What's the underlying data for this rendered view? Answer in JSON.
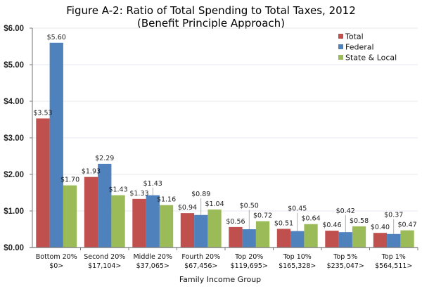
{
  "chart_data": {
    "type": "bar",
    "title": "Figure A-2: Ratio of Total Spending to Total Taxes, 2012",
    "subtitle": "(Benefit Principle Approach)",
    "xlabel": "Family Income Group",
    "ylabel": "",
    "ylim": [
      0,
      6
    ],
    "yticks": [
      0,
      1,
      2,
      3,
      4,
      5,
      6
    ],
    "ytick_labels": [
      "$0.00",
      "$1.00",
      "$2.00",
      "$3.00",
      "$4.00",
      "$5.00",
      "$6.00"
    ],
    "grid": true,
    "legend_position": "top-right",
    "categories": [
      {
        "line1": "Bottom 20%",
        "line2": "$0>"
      },
      {
        "line1": "Second 20%",
        "line2": "$17,104>"
      },
      {
        "line1": "Middle 20%",
        "line2": "$37,065>"
      },
      {
        "line1": "Fourth 20%",
        "line2": "$67,456>"
      },
      {
        "line1": "Top 20%",
        "line2": "$119,695>"
      },
      {
        "line1": "Top 10%",
        "line2": "$165,328>"
      },
      {
        "line1": "Top 5%",
        "line2": "$235,047>"
      },
      {
        "line1": "Top 1%",
        "line2": "$564,511>"
      }
    ],
    "series": [
      {
        "name": "Total",
        "color": "#C0504D",
        "values": [
          3.53,
          1.93,
          1.33,
          0.94,
          0.56,
          0.51,
          0.46,
          0.4
        ],
        "labels": [
          "$3.53",
          "$1.93",
          "$1.33",
          "$0.94",
          "$0.56",
          "$0.51",
          "$0.46",
          "$0.40"
        ]
      },
      {
        "name": "Federal",
        "color": "#4F81BD",
        "values": [
          5.6,
          2.29,
          1.43,
          0.89,
          0.5,
          0.45,
          0.42,
          0.37
        ],
        "labels": [
          "$5.60",
          "$2.29",
          "$1.43",
          "$0.89",
          "$0.50",
          "$0.45",
          "$0.42",
          "$0.37"
        ]
      },
      {
        "name": "State & Local",
        "color": "#9BBB59",
        "values": [
          1.7,
          1.43,
          1.16,
          1.04,
          0.72,
          0.64,
          0.58,
          0.47
        ],
        "labels": [
          "$1.70",
          "$1.43",
          "$1.16",
          "$1.04",
          "$0.72",
          "$0.64",
          "$0.58",
          "$0.47"
        ]
      }
    ]
  }
}
